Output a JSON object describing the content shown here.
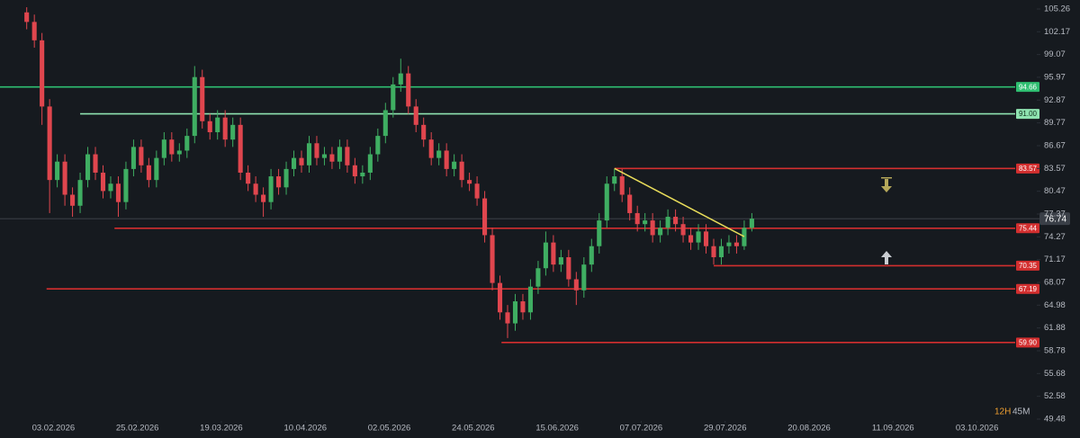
{
  "chart_data": {
    "type": "candlestick",
    "timeframe": "12H",
    "countdown": "45M",
    "last_price": 76.74,
    "up_color": "#3fae62",
    "down_color": "#e0464e",
    "xlim": [
      -3.5,
      129.5
    ],
    "xticks": [
      {
        "value": 3.5,
        "label": "03.02.2026"
      },
      {
        "value": 14.5,
        "label": "25.02.2026"
      },
      {
        "value": 25.5,
        "label": "19.03.2026"
      },
      {
        "value": 36.5,
        "label": "10.04.2026"
      },
      {
        "value": 47.5,
        "label": "02.05.2026"
      },
      {
        "value": 58.5,
        "label": "24.05.2026"
      },
      {
        "value": 69.5,
        "label": "15.06.2026"
      },
      {
        "value": 80.5,
        "label": "07.07.2026"
      },
      {
        "value": 91.5,
        "label": "29.07.2026"
      },
      {
        "value": 102.5,
        "label": "20.08.2026"
      },
      {
        "value": 113.5,
        "label": "11.09.2026"
      },
      {
        "value": 124.5,
        "label": "03.10.2026"
      }
    ],
    "ylim": [
      49.48,
      105.26
    ],
    "yticks": [
      105.26,
      102.17,
      99.07,
      95.97,
      92.87,
      89.77,
      86.67,
      83.57,
      80.47,
      77.37,
      74.27,
      71.17,
      68.07,
      64.98,
      61.88,
      58.78,
      55.68,
      52.58,
      49.48
    ],
    "open": [
      104.8,
      103.5,
      101.0,
      92.0,
      82.0,
      84.5,
      80.0,
      78.5,
      82.0,
      85.5,
      83.0,
      80.5,
      81.5,
      79.0,
      83.5,
      86.5,
      84.0,
      82.0,
      85.0,
      87.5,
      85.5,
      86.0,
      88.0,
      96.0,
      90.0,
      88.5,
      90.5,
      87.5,
      89.5,
      83.0,
      81.5,
      80.0,
      79.0,
      82.5,
      81.0,
      83.5,
      85.0,
      84.0,
      87.0,
      85.0,
      85.5,
      84.5,
      86.5,
      84.0,
      82.5,
      83.0,
      85.5,
      88.0,
      91.5,
      95.0,
      96.5,
      92.0,
      89.5,
      87.5,
      85.0,
      86.0,
      83.5,
      84.5,
      82.0,
      81.5,
      79.5,
      74.5,
      68.0,
      64.0,
      62.5,
      65.5,
      64.0,
      67.5,
      70.0,
      73.5,
      70.5,
      71.5,
      68.5,
      67.0,
      70.5,
      73.0,
      76.5,
      81.5,
      82.5,
      80.0,
      77.5,
      76.0,
      76.5,
      74.5,
      75.5,
      77.0,
      76.0,
      74.5,
      73.5,
      75.0,
      73.0,
      71.5,
      73.0,
      73.5,
      73.0,
      75.5
    ],
    "high": [
      105.5,
      104.5,
      102.0,
      93.0,
      85.5,
      85.5,
      81.0,
      83.0,
      86.5,
      86.5,
      84.0,
      82.5,
      82.5,
      84.5,
      87.5,
      87.5,
      85.0,
      86.0,
      88.5,
      88.5,
      87.0,
      89.0,
      97.5,
      97.0,
      91.0,
      91.5,
      91.5,
      90.5,
      90.5,
      84.0,
      82.5,
      81.0,
      83.5,
      83.5,
      84.5,
      86.0,
      86.0,
      88.0,
      88.0,
      86.5,
      86.5,
      87.5,
      87.5,
      85.0,
      84.0,
      86.5,
      89.0,
      92.5,
      96.0,
      98.5,
      97.5,
      93.0,
      90.5,
      88.5,
      87.0,
      87.0,
      85.5,
      85.5,
      83.0,
      82.5,
      80.5,
      75.5,
      69.0,
      65.0,
      66.5,
      66.5,
      68.5,
      71.0,
      75.0,
      74.5,
      72.5,
      72.5,
      69.5,
      71.5,
      74.0,
      77.5,
      82.5,
      83.5,
      83.5,
      81.0,
      78.5,
      77.5,
      77.5,
      76.5,
      78.0,
      78.0,
      77.0,
      75.5,
      76.0,
      76.0,
      74.0,
      74.0,
      74.5,
      74.5,
      76.5,
      77.5
    ],
    "low": [
      102.5,
      100.0,
      89.5,
      77.5,
      81.0,
      78.5,
      77.0,
      77.5,
      81.0,
      82.0,
      79.5,
      79.5,
      77.0,
      78.0,
      82.5,
      83.0,
      81.0,
      81.0,
      84.0,
      84.5,
      84.5,
      85.0,
      87.0,
      89.0,
      87.5,
      87.5,
      86.5,
      86.5,
      82.0,
      80.5,
      79.0,
      77.0,
      78.0,
      80.0,
      80.0,
      82.5,
      83.0,
      83.0,
      84.0,
      84.0,
      83.5,
      83.5,
      83.0,
      81.5,
      81.5,
      82.0,
      84.5,
      87.0,
      90.5,
      94.0,
      91.0,
      88.5,
      86.5,
      84.0,
      84.0,
      82.5,
      82.5,
      81.0,
      80.5,
      78.5,
      73.5,
      67.0,
      63.0,
      60.5,
      61.5,
      63.0,
      63.0,
      66.5,
      69.0,
      69.5,
      69.5,
      67.5,
      65.0,
      66.0,
      69.5,
      72.0,
      75.5,
      80.5,
      79.0,
      76.5,
      75.0,
      75.0,
      73.5,
      73.5,
      74.5,
      75.0,
      73.5,
      72.5,
      72.5,
      72.0,
      70.5,
      70.5,
      72.0,
      72.0,
      72.5,
      75.0
    ],
    "close": [
      103.5,
      101.0,
      92.0,
      82.0,
      84.5,
      80.0,
      78.5,
      82.0,
      85.5,
      83.0,
      80.5,
      81.5,
      79.0,
      83.5,
      86.5,
      84.0,
      82.0,
      85.0,
      87.5,
      85.5,
      86.0,
      88.0,
      96.0,
      90.0,
      88.5,
      90.5,
      87.5,
      89.5,
      83.0,
      81.5,
      80.0,
      79.0,
      82.5,
      81.0,
      83.5,
      85.0,
      84.0,
      87.0,
      85.0,
      85.5,
      84.5,
      86.5,
      84.0,
      82.5,
      83.0,
      85.5,
      88.0,
      91.5,
      95.0,
      96.5,
      92.0,
      89.5,
      87.5,
      85.0,
      86.0,
      83.5,
      84.5,
      82.0,
      81.5,
      79.5,
      74.5,
      68.0,
      64.0,
      62.5,
      65.5,
      64.0,
      67.5,
      70.0,
      73.5,
      70.5,
      71.5,
      68.5,
      67.0,
      70.5,
      73.0,
      76.5,
      81.5,
      82.5,
      80.0,
      77.5,
      76.0,
      76.5,
      74.5,
      75.5,
      77.0,
      76.0,
      74.5,
      73.5,
      75.0,
      73.0,
      71.5,
      73.0,
      73.5,
      73.0,
      75.5,
      76.74
    ],
    "levels": [
      {
        "value": 94.66,
        "label": "94.66",
        "color": "#2fbf71",
        "start": -3.5
      },
      {
        "value": 91.0,
        "label": "91.00",
        "color": "#8fe3b0",
        "start": 7
      },
      {
        "value": 83.57,
        "label": "83.57",
        "color": "#d32f2f",
        "start": 77
      },
      {
        "value": 75.44,
        "label": "75.44",
        "color": "#d32f2f",
        "start": 11.5
      },
      {
        "value": 70.35,
        "label": "70.35",
        "color": "#d32f2f",
        "start": 90
      },
      {
        "value": 67.19,
        "label": "67.19",
        "color": "#d32f2f",
        "start": 2.6
      },
      {
        "value": 59.9,
        "label": "59.90",
        "color": "#d32f2f",
        "start": 62.2
      }
    ],
    "trendline": {
      "color": "#e8dc5a",
      "x": [
        77,
        94
      ],
      "y": [
        83.57,
        74.3
      ]
    }
  }
}
